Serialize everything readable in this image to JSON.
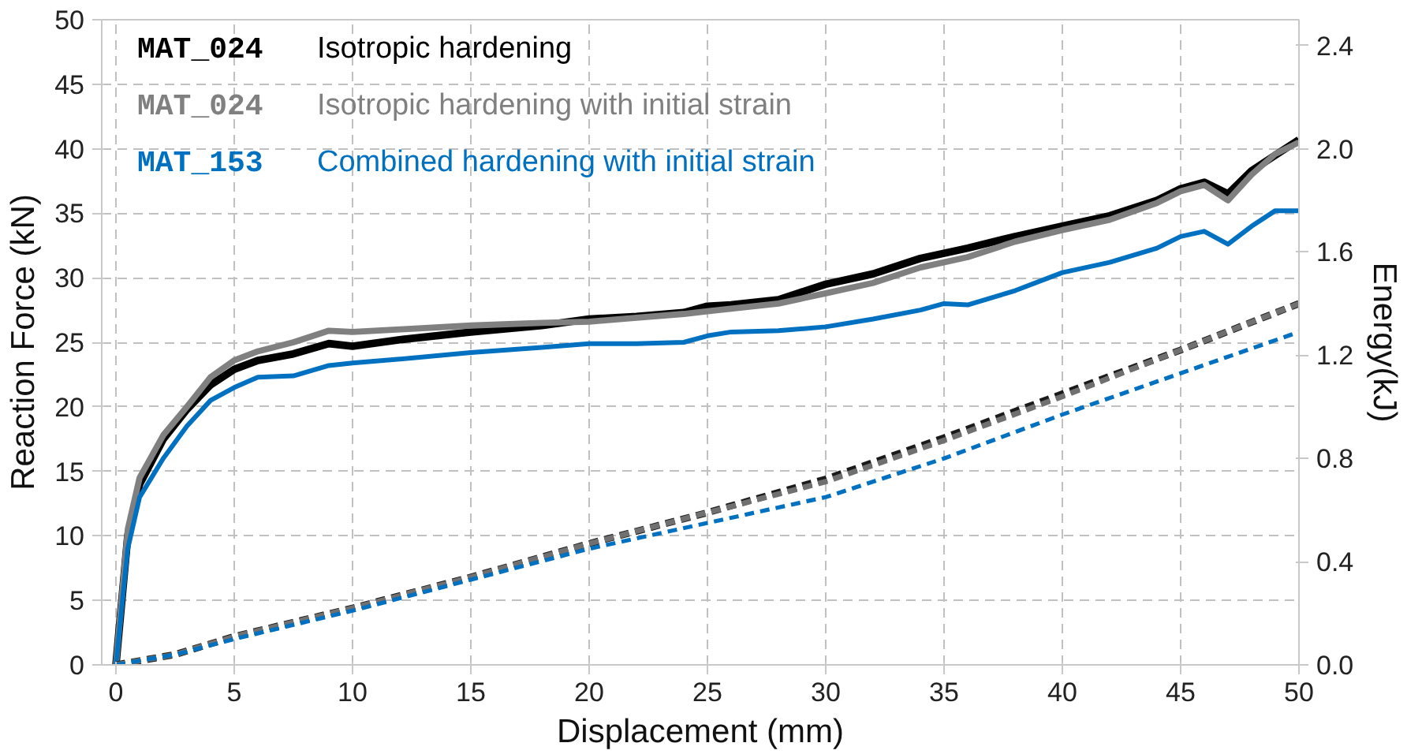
{
  "chart_data": {
    "type": "line",
    "xlabel": "Displacement (mm)",
    "ylabel": "Reaction Force (kN)",
    "y2label": "Energy(kJ)",
    "xlim": [
      -0.6,
      50
    ],
    "xticks": [
      0,
      5,
      10,
      15,
      20,
      25,
      30,
      35,
      40,
      45,
      50
    ],
    "ylim": [
      0,
      50
    ],
    "yticks": [
      0,
      5,
      10,
      15,
      20,
      25,
      30,
      35,
      40,
      45,
      50
    ],
    "y2lim": [
      0,
      2.5
    ],
    "y2ticks": [
      {
        "value": 0,
        "label": "0.0"
      },
      0.4,
      0.8,
      1.2,
      1.6,
      {
        "value": 2,
        "label": "2.0"
      },
      2.4
    ],
    "grid": true,
    "marker": "none",
    "series": [
      {
        "name": "MAT_024 Isotropic hardening",
        "color": "#000000",
        "line_style": "solid",
        "x": [
          0,
          0.5,
          1,
          2,
          3,
          4,
          5,
          6,
          7.5,
          9,
          10,
          12,
          15,
          18,
          20,
          22,
          24,
          25,
          26,
          28,
          30,
          32,
          34,
          36,
          38,
          40,
          42,
          44,
          45,
          46,
          47,
          48,
          49,
          50
        ],
        "values": [
          0,
          10,
          14,
          17.5,
          19.8,
          21.7,
          22.9,
          23.6,
          24.1,
          24.9,
          24.7,
          25.2,
          25.8,
          26.3,
          26.8,
          27,
          27.3,
          27.8,
          27.9,
          28.3,
          29.5,
          30.3,
          31.5,
          32.3,
          33.2,
          34,
          34.8,
          36,
          36.9,
          37.4,
          36.5,
          38.3,
          39.5,
          40.7
        ]
      },
      {
        "name": "MAT_024 Isotropic hardening with initial strain",
        "color": "#808080",
        "line_style": "solid",
        "x": [
          0,
          0.5,
          1,
          2,
          3,
          4,
          5,
          6,
          7.5,
          9,
          10,
          12,
          15,
          18,
          20,
          22,
          24,
          25,
          26,
          28,
          30,
          32,
          34,
          36,
          38,
          40,
          42,
          44,
          45,
          46,
          47,
          48,
          49,
          50
        ],
        "values": [
          0,
          10.5,
          14.5,
          17.8,
          20,
          22.3,
          23.6,
          24.3,
          25,
          25.9,
          25.8,
          26,
          26.3,
          26.5,
          26.6,
          26.9,
          27.2,
          27.4,
          27.6,
          28,
          28.8,
          29.6,
          30.8,
          31.6,
          32.8,
          33.7,
          34.5,
          35.8,
          36.7,
          37.2,
          36,
          38,
          39.6,
          40.5
        ]
      },
      {
        "name": "MAT_153 Combined hardening with initial strain",
        "color": "#0070c0",
        "line_style": "solid",
        "x": [
          0,
          0.5,
          1,
          2,
          3,
          4,
          5,
          6,
          7.5,
          9,
          10,
          12,
          15,
          18,
          20,
          22,
          24,
          25,
          26,
          28,
          30,
          32,
          34,
          35,
          36,
          38,
          40,
          42,
          44,
          45,
          46,
          47,
          48,
          49,
          50
        ],
        "values": [
          0,
          9,
          13,
          16,
          18.5,
          20.5,
          21.5,
          22.3,
          22.4,
          23.2,
          23.4,
          23.7,
          24.2,
          24.6,
          24.9,
          24.9,
          25,
          25.5,
          25.8,
          25.9,
          26.2,
          26.8,
          27.5,
          28,
          27.9,
          29,
          30.4,
          31.2,
          32.3,
          33.2,
          33.6,
          32.6,
          34,
          35.2,
          35.2
        ]
      },
      {
        "color": "#1a1a1a",
        "line_style": "dashed",
        "axis": "y2",
        "x": [
          0,
          2.5,
          5,
          10,
          15,
          20,
          25,
          30,
          35,
          40,
          45,
          50
        ],
        "values": [
          0,
          0.04,
          0.11,
          0.22,
          0.34,
          0.47,
          0.59,
          0.72,
          0.88,
          1.05,
          1.22,
          1.4
        ]
      },
      {
        "color": "#707070",
        "line_style": "dashed",
        "axis": "y2",
        "x": [
          0,
          2.5,
          5,
          10,
          15,
          20,
          25,
          30,
          35,
          40,
          45,
          50
        ],
        "values": [
          0,
          0.04,
          0.11,
          0.22,
          0.34,
          0.47,
          0.59,
          0.71,
          0.87,
          1.04,
          1.22,
          1.4
        ]
      },
      {
        "color": "#0070c0",
        "line_style": "dashed",
        "axis": "y2",
        "x": [
          0,
          2.5,
          5,
          10,
          15,
          20,
          25,
          30,
          35,
          40,
          45,
          50
        ],
        "values": [
          0,
          0.04,
          0.1,
          0.21,
          0.33,
          0.45,
          0.55,
          0.65,
          0.8,
          0.97,
          1.13,
          1.29
        ]
      }
    ]
  }
}
